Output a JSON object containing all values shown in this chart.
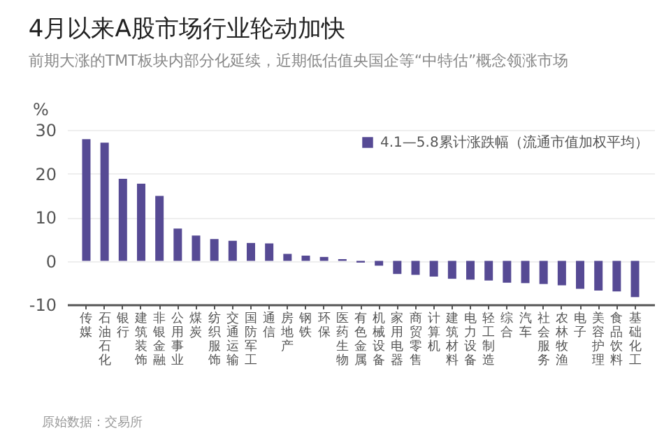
{
  "chart_data": {
    "type": "bar",
    "title": "4月以来A股市场行业轮动加快",
    "subtitle": "前期大涨的TMT板块内部分化延续，近期低估值央国企等“中特估”概念领涨市场",
    "ylabel": "%",
    "categories": [
      "传媒",
      "石油石化",
      "银行",
      "建筑装饰",
      "非银金融",
      "公用事业",
      "煤炭",
      "纺织服饰",
      "交通运输",
      "国防军工",
      "通信",
      "房地产",
      "钢铁",
      "环保",
      "医药生物",
      "有色金属",
      "机械设备",
      "家用电器",
      "商贸零售",
      "计算机",
      "建筑材料",
      "电力设备",
      "轻工制造",
      "综合",
      "汽车",
      "社会服务",
      "农林牧渔",
      "电子",
      "美容护理",
      "食品饮料",
      "基础化工"
    ],
    "series": [
      {
        "name": "4.1—5.8累计涨跌幅（流通市值加权平均）",
        "color": "#564a94",
        "values": [
          27.9,
          27.1,
          18.8,
          17.7,
          14.9,
          7.4,
          5.8,
          5.0,
          4.6,
          4.1,
          4.0,
          1.6,
          1.2,
          0.9,
          0.4,
          -0.4,
          -1.1,
          -3.0,
          -3.2,
          -3.6,
          -4.1,
          -4.3,
          -4.5,
          -5.0,
          -5.1,
          -5.3,
          -5.6,
          -6.4,
          -6.8,
          -7.0,
          -8.3
        ]
      }
    ],
    "ylim": [
      -10,
      30
    ],
    "yticks": [
      -10,
      0,
      10,
      20,
      30
    ],
    "grid": "y",
    "legend": "top right",
    "annotations": [
      "原始数据：交易所"
    ]
  }
}
